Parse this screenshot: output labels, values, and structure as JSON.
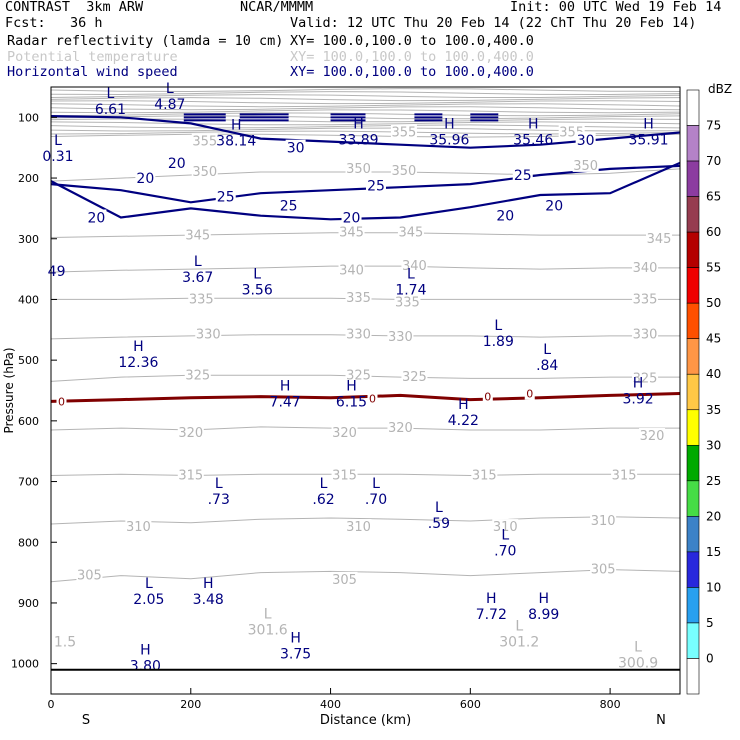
{
  "header": {
    "experiment": "CONTRAST  3km ARW",
    "org": "NCAR/MMMM",
    "init": "Init: 00 UTC Wed 19 Feb 14",
    "fcst": "Fcst:   36 h",
    "valid": "Valid: 12 UTC Thu 20 Feb 14 (22 ChT Thu 20 Feb 14)",
    "field1": "Radar reflectivity (lamda = 10 cm)",
    "field1_xy": "XY= 100.0,100.0 to 100.0,400.0",
    "field2": "Potential temperature",
    "field2_xy": "XY= 100.0,100.0 to 100.0,400.0",
    "field3": "Horizontal wind speed",
    "field3_xy": "XY= 100.0,100.0 to 100.0,400.0"
  },
  "colors": {
    "theta": "#b4b4b4",
    "wind": "#000080",
    "freezing": "#800000",
    "axis": "#000000"
  },
  "chart_data": {
    "type": "cross-section contour",
    "xlabel": "Distance (km)",
    "ylabel": "Pressure (hPa)",
    "xlim": [
      0,
      900
    ],
    "ylim": [
      1050,
      50
    ],
    "x_ticks": [
      0,
      200,
      400,
      600,
      800
    ],
    "y_ticks": [
      100,
      200,
      300,
      400,
      500,
      600,
      700,
      800,
      900,
      1000
    ],
    "x_ends": [
      "S",
      "N"
    ],
    "surface_pressure": 1010,
    "colorbar": {
      "unit": "dBZ",
      "labels": [
        "75",
        "70",
        "65",
        "60",
        "55",
        "50",
        "45",
        "40",
        "35",
        "30",
        "25",
        "20",
        "15",
        "10",
        "5",
        "0"
      ],
      "colors": [
        "#ffffff",
        "#b482c8",
        "#8c3ca0",
        "#963c50",
        "#b40000",
        "#f00000",
        "#ff5000",
        "#ff9646",
        "#ffc846",
        "#ffff00",
        "#00aa00",
        "#46dc46",
        "#3c82c8",
        "#2828dc",
        "#28a0f0",
        "#78ffff",
        "#ffffff"
      ]
    },
    "theta_contours": [
      {
        "value": "305",
        "p": [
          865,
          855,
          860,
          850,
          848,
          850,
          855,
          850,
          845,
          848
        ]
      },
      {
        "value": "310",
        "p": [
          770,
          765,
          768,
          762,
          760,
          762,
          765,
          760,
          758,
          760
        ]
      },
      {
        "value": "315",
        "p": [
          690,
          688,
          690,
          688,
          688,
          688,
          690,
          688,
          688,
          688
        ]
      },
      {
        "value": "320",
        "p": [
          615,
          612,
          615,
          610,
          612,
          612,
          615,
          615,
          612,
          612
        ]
      },
      {
        "value": "325",
        "p": [
          535,
          528,
          525,
          525,
          525,
          528,
          530,
          530,
          528,
          528
        ]
      },
      {
        "value": "330",
        "p": [
          465,
          462,
          460,
          458,
          458,
          460,
          460,
          462,
          460,
          460
        ]
      },
      {
        "value": "335",
        "p": [
          400,
          400,
          398,
          398,
          398,
          400,
          400,
          400,
          400,
          400
        ]
      },
      {
        "value": "340",
        "p": [
          355,
          352,
          350,
          348,
          345,
          345,
          348,
          350,
          348,
          348
        ]
      },
      {
        "value": "345",
        "p": [
          298,
          296,
          294,
          292,
          290,
          290,
          292,
          294,
          294,
          294
        ]
      },
      {
        "value": "350",
        "p": [
          205,
          200,
          195,
          190,
          190,
          190,
          192,
          195,
          192,
          185
        ]
      }
    ],
    "theta_labels": [
      {
        "text": "305",
        "x": 55,
        "p": 855
      },
      {
        "text": "305",
        "x": 420,
        "p": 862
      },
      {
        "text": "305",
        "x": 790,
        "p": 845
      },
      {
        "text": "310",
        "x": 125,
        "p": 775
      },
      {
        "text": "310",
        "x": 440,
        "p": 775
      },
      {
        "text": "310",
        "x": 650,
        "p": 775
      },
      {
        "text": "310",
        "x": 790,
        "p": 765
      },
      {
        "text": "315",
        "x": 200,
        "p": 690
      },
      {
        "text": "315",
        "x": 420,
        "p": 690
      },
      {
        "text": "315",
        "x": 620,
        "p": 690
      },
      {
        "text": "315",
        "x": 820,
        "p": 690
      },
      {
        "text": "320",
        "x": 200,
        "p": 620
      },
      {
        "text": "320",
        "x": 420,
        "p": 620
      },
      {
        "text": "320",
        "x": 500,
        "p": 612
      },
      {
        "text": "320",
        "x": 860,
        "p": 625
      },
      {
        "text": "325",
        "x": 210,
        "p": 525
      },
      {
        "text": "325",
        "x": 440,
        "p": 525
      },
      {
        "text": "325",
        "x": 520,
        "p": 528
      },
      {
        "text": "325",
        "x": 850,
        "p": 530
      },
      {
        "text": "330",
        "x": 225,
        "p": 458
      },
      {
        "text": "330",
        "x": 440,
        "p": 458
      },
      {
        "text": "330",
        "x": 500,
        "p": 462
      },
      {
        "text": "330",
        "x": 850,
        "p": 458
      },
      {
        "text": "335",
        "x": 215,
        "p": 400
      },
      {
        "text": "335",
        "x": 440,
        "p": 398
      },
      {
        "text": "335",
        "x": 510,
        "p": 405
      },
      {
        "text": "335",
        "x": 850,
        "p": 400
      },
      {
        "text": "340",
        "x": 430,
        "p": 352
      },
      {
        "text": "340",
        "x": 520,
        "p": 345
      },
      {
        "text": "340",
        "x": 850,
        "p": 348
      },
      {
        "text": "345",
        "x": 210,
        "p": 295
      },
      {
        "text": "345",
        "x": 430,
        "p": 290
      },
      {
        "text": "345",
        "x": 515,
        "p": 290
      },
      {
        "text": "345",
        "x": 870,
        "p": 300
      },
      {
        "text": "350",
        "x": 220,
        "p": 190
      },
      {
        "text": "350",
        "x": 440,
        "p": 185
      },
      {
        "text": "350",
        "x": 505,
        "p": 188
      },
      {
        "text": "350",
        "x": 765,
        "p": 180
      },
      {
        "text": "355",
        "x": 220,
        "p": 140
      },
      {
        "text": "355",
        "x": 505,
        "p": 125
      },
      {
        "text": "355",
        "x": 745,
        "p": 125
      }
    ],
    "wind_contours": [
      {
        "value": "20",
        "p": [
          205,
          265,
          250,
          262,
          268,
          265,
          248,
          228,
          225,
          175
        ]
      },
      {
        "value": "25",
        "p": [
          210,
          220,
          240,
          225,
          220,
          215,
          210,
          195,
          185,
          180
        ]
      },
      {
        "value": "30",
        "p": [
          98,
          100,
          110,
          135,
          140,
          145,
          150,
          145,
          135,
          125
        ]
      }
    ],
    "wind_labels": [
      {
        "text": "20",
        "x": 65,
        "p": 265
      },
      {
        "text": "20",
        "x": 135,
        "p": 200
      },
      {
        "text": "20",
        "x": 180,
        "p": 175
      },
      {
        "text": "20",
        "x": 430,
        "p": 265
      },
      {
        "text": "20",
        "x": 650,
        "p": 262
      },
      {
        "text": "20",
        "x": 720,
        "p": 245
      },
      {
        "text": "25",
        "x": 250,
        "p": 230
      },
      {
        "text": "25",
        "x": 340,
        "p": 245
      },
      {
        "text": "25",
        "x": 465,
        "p": 212
      },
      {
        "text": "25",
        "x": 675,
        "p": 195
      },
      {
        "text": "30",
        "x": 350,
        "p": 150
      },
      {
        "text": "30",
        "x": 765,
        "p": 137
      }
    ],
    "freezing_level": {
      "label": "0",
      "p": [
        568,
        565,
        562,
        560,
        562,
        558,
        565,
        562,
        558,
        555
      ],
      "labels": [
        {
          "x": 15,
          "p": 568
        },
        {
          "x": 460,
          "p": 563
        },
        {
          "x": 625,
          "p": 560
        },
        {
          "x": 685,
          "p": 555
        }
      ]
    },
    "wind_extrema": [
      {
        "type": "L",
        "value": "6.61",
        "x": 85,
        "p": 88
      },
      {
        "type": "L",
        "value": "4.87",
        "x": 170,
        "p": 80
      },
      {
        "type": "H",
        "value": "38.14",
        "x": 265,
        "p": 140
      },
      {
        "type": "H",
        "value": "33.89",
        "x": 440,
        "p": 138
      },
      {
        "type": "H",
        "value": "35.96",
        "x": 570,
        "p": 138
      },
      {
        "type": "H",
        "value": "35.46",
        "x": 690,
        "p": 138
      },
      {
        "type": "H",
        "value": "35.91",
        "x": 855,
        "p": 138
      },
      {
        "type": "L",
        "value": "0.31",
        "x": 10,
        "p": 165
      },
      {
        "type": "",
        "value": "49",
        "x": 8,
        "p": 355
      },
      {
        "type": "L",
        "value": "3.67",
        "x": 210,
        "p": 365
      },
      {
        "type": "L",
        "value": "3.56",
        "x": 295,
        "p": 385
      },
      {
        "type": "L",
        "value": "1.74",
        "x": 515,
        "p": 385
      },
      {
        "type": "L",
        "value": "1.89",
        "x": 640,
        "p": 470
      },
      {
        "type": "L",
        "value": ".84",
        "x": 710,
        "p": 510
      },
      {
        "type": "H",
        "value": "12.36",
        "x": 125,
        "p": 505
      },
      {
        "type": "H",
        "value": "7.47",
        "x": 335,
        "p": 570
      },
      {
        "type": "H",
        "value": "6.15",
        "x": 430,
        "p": 570
      },
      {
        "type": "H",
        "value": "4.22",
        "x": 590,
        "p": 600
      },
      {
        "type": "H",
        "value": "3.92",
        "x": 840,
        "p": 565
      },
      {
        "type": "L",
        "value": ".73",
        "x": 240,
        "p": 730
      },
      {
        "type": "L",
        "value": ".62",
        "x": 390,
        "p": 730
      },
      {
        "type": "L",
        "value": ".70",
        "x": 465,
        "p": 730
      },
      {
        "type": "L",
        "value": ".59",
        "x": 555,
        "p": 770
      },
      {
        "type": "L",
        "value": ".70",
        "x": 650,
        "p": 815
      },
      {
        "type": "L",
        "value": "2.05",
        "x": 140,
        "p": 895
      },
      {
        "type": "H",
        "value": "3.48",
        "x": 225,
        "p": 895
      },
      {
        "type": "H",
        "value": "7.72",
        "x": 630,
        "p": 920
      },
      {
        "type": "H",
        "value": "8.99",
        "x": 705,
        "p": 920
      },
      {
        "type": "H",
        "value": "3.80",
        "x": 135,
        "p": 1005
      },
      {
        "type": "H",
        "value": "3.75",
        "x": 350,
        "p": 985
      }
    ],
    "theta_extrema": [
      {
        "type": "",
        "value": "1.5",
        "x": 20,
        "p": 965
      },
      {
        "type": "L",
        "value": "301.6",
        "x": 310,
        "p": 945
      },
      {
        "type": "L",
        "value": "301.2",
        "x": 670,
        "p": 965
      },
      {
        "type": "L",
        "value": "300.9",
        "x": 840,
        "p": 1000
      }
    ]
  }
}
